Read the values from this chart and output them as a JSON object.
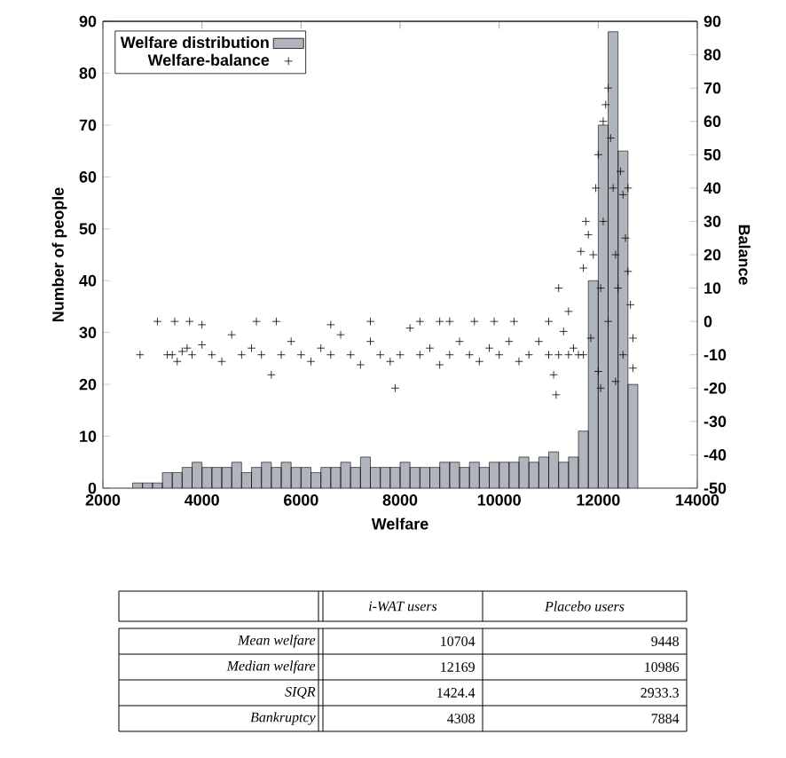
{
  "chart_data": [
    {
      "type": "histogram",
      "xlabel": "Welfare",
      "ylabel": "Number of people",
      "y2label": "Balance",
      "xlim": [
        2000,
        14000
      ],
      "xticks": [
        2000,
        4000,
        6000,
        8000,
        10000,
        12000,
        14000
      ],
      "ylim": [
        0,
        90
      ],
      "yticks": [
        0,
        10,
        20,
        30,
        40,
        50,
        60,
        70,
        80,
        90
      ],
      "y2lim": [
        -50,
        90
      ],
      "y2ticks": [
        -50,
        -40,
        -30,
        -20,
        -10,
        0,
        10,
        20,
        30,
        40,
        50,
        60,
        70,
        80,
        90
      ],
      "legend": "top left",
      "series": [
        {
          "name": "Welfare distribution",
          "color": "#b0b4bc",
          "bins": [
            2600,
            2800,
            3000,
            3200,
            3400,
            3600,
            3800,
            4000,
            4200,
            4400,
            4600,
            4800,
            5000,
            5200,
            5400,
            5600,
            5800,
            6000,
            6200,
            6400,
            6600,
            6800,
            7000,
            7200,
            7400,
            7600,
            7800,
            8000,
            8200,
            8400,
            8600,
            8800,
            9000,
            9200,
            9400,
            9600,
            9800,
            10000,
            10200,
            10400,
            10600,
            10800,
            11000,
            11200,
            11400,
            11600,
            11800,
            12000,
            12200,
            12400,
            12600,
            12800
          ],
          "values": [
            1,
            1,
            1,
            3,
            3,
            4,
            5,
            4,
            4,
            4,
            5,
            3,
            4,
            5,
            4,
            5,
            4,
            4,
            3,
            4,
            4,
            5,
            4,
            6,
            4,
            4,
            4,
            5,
            4,
            4,
            4,
            5,
            5,
            4,
            5,
            4,
            5,
            5,
            5,
            6,
            5,
            6,
            7,
            5,
            6,
            11,
            40,
            70,
            88,
            65,
            20
          ]
        },
        {
          "name": "Welfare-balance",
          "type": "scatter",
          "axis": "y2",
          "color": "#000000",
          "marker": "cross",
          "x": [
            2750,
            3300,
            3400,
            3500,
            3600,
            3700,
            3800,
            4000,
            4200,
            4400,
            4600,
            4800,
            5000,
            5200,
            5400,
            5600,
            5800,
            6000,
            6200,
            6400,
            6600,
            6800,
            7000,
            7200,
            7400,
            7600,
            7800,
            7900,
            8000,
            8200,
            8400,
            8600,
            8800,
            9000,
            9200,
            9400,
            9600,
            9800,
            10000,
            10200,
            10400,
            10600,
            10800,
            11000,
            11100,
            11150,
            11200,
            11300,
            11400,
            11500,
            11600,
            11700,
            3100,
            3450,
            3750,
            4000,
            5100,
            5500,
            6600,
            7400,
            8400,
            8800,
            9000,
            9500,
            9900,
            10300,
            11000,
            11200,
            11400,
            11650,
            11700,
            11750,
            11800,
            11850,
            11900,
            11950,
            12000,
            12050,
            12000,
            12100,
            12150,
            12200,
            12100,
            12250,
            12200,
            12300,
            12350,
            12400,
            12450,
            12500,
            12550,
            12600,
            12650,
            12700,
            12700,
            12600,
            12500,
            12350,
            12050
          ],
          "values": [
            -10,
            -10,
            -10,
            -12,
            -9,
            -8,
            -10,
            -7,
            -10,
            -12,
            -4,
            -10,
            -8,
            -10,
            -16,
            -10,
            -6,
            -10,
            -12,
            -8,
            -10,
            -4,
            -10,
            -13,
            -6,
            -10,
            -12,
            -20,
            -10,
            -2,
            -10,
            -8,
            -13,
            -10,
            -6,
            -10,
            -12,
            -8,
            -10,
            -6,
            -12,
            -10,
            -6,
            -10,
            -16,
            -22,
            -10,
            -3,
            -10,
            -8,
            -10,
            -10,
            0,
            0,
            0,
            -1,
            0,
            0,
            -1,
            0,
            0,
            0,
            0,
            0,
            0,
            0,
            0,
            10,
            3,
            21,
            16,
            30,
            26,
            -5,
            20,
            40,
            50,
            10,
            -15,
            60,
            65,
            70,
            30,
            55,
            0,
            40,
            20,
            10,
            45,
            38,
            25,
            15,
            5,
            -5,
            -14,
            40,
            -10,
            -18,
            -20
          ]
        }
      ]
    },
    {
      "type": "other",
      "annotations": [
        "i-WAT users",
        "Placebo users",
        "Mean welfare",
        "10704",
        "9448",
        "Median welfare",
        "12169",
        "10986",
        "SIQR",
        "1424.4",
        "2933.3",
        "Bankruptcy",
        "4308",
        "7884"
      ]
    }
  ]
}
